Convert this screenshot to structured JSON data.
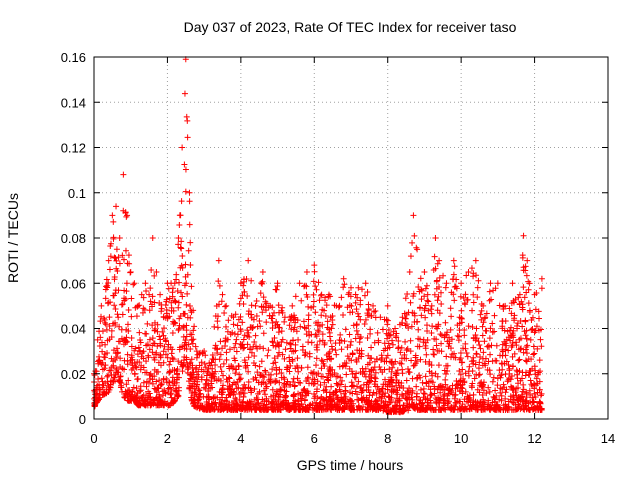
{
  "chart_data": {
    "type": "scatter",
    "title": "Day 037 of 2023, Rate Of TEC Index for receiver taso",
    "xlabel": "GPS time / hours",
    "ylabel": "ROTI / TECUs",
    "xlim": [
      0,
      14
    ],
    "ylim": [
      0,
      0.16
    ],
    "xticks": [
      0,
      2,
      4,
      6,
      8,
      10,
      12,
      14
    ],
    "xtick_labels": [
      "0",
      "2",
      "4",
      "6",
      "8",
      "10",
      "12",
      "14"
    ],
    "yticks": [
      0,
      0.02,
      0.04,
      0.06,
      0.08,
      0.1,
      0.12,
      0.14,
      0.16
    ],
    "ytick_labels": [
      "0",
      "0.02",
      "0.04",
      "0.06",
      "0.08",
      "0.1",
      "0.12",
      "0.14",
      "0.16"
    ],
    "grid": true,
    "marker": "plus",
    "color": "#ff0000",
    "envelope": {
      "note_free": true,
      "x": [
        0,
        0.1,
        0.2,
        0.4,
        0.5,
        0.6,
        0.7,
        0.8,
        0.9,
        1.0,
        1.1,
        1.2,
        1.3,
        1.4,
        1.5,
        1.6,
        1.7,
        1.8,
        1.9,
        2.0,
        2.1,
        2.2,
        2.3,
        2.4,
        2.5,
        2.6,
        2.7,
        2.8,
        3.0,
        3.2,
        3.4,
        3.5,
        3.6,
        3.8,
        4.0,
        4.2,
        4.4,
        4.6,
        4.8,
        5.0,
        5.2,
        5.4,
        5.6,
        5.8,
        6.0,
        6.2,
        6.4,
        6.6,
        6.8,
        7.0,
        7.2,
        7.4,
        7.6,
        7.8,
        8.0,
        8.2,
        8.4,
        8.6,
        8.7,
        8.8,
        9.0,
        9.2,
        9.3,
        9.4,
        9.6,
        9.8,
        10.0,
        10.2,
        10.4,
        10.6,
        10.8,
        11.0,
        11.2,
        11.4,
        11.6,
        11.7,
        11.8,
        12.0,
        12.2
      ],
      "ymax": [
        0.02,
        0.035,
        0.05,
        0.07,
        0.09,
        0.094,
        0.08,
        0.108,
        0.09,
        0.065,
        0.06,
        0.05,
        0.055,
        0.06,
        0.055,
        0.08,
        0.065,
        0.055,
        0.045,
        0.06,
        0.06,
        0.06,
        0.08,
        0.12,
        0.159,
        0.1,
        0.048,
        0.03,
        0.03,
        0.025,
        0.07,
        0.055,
        0.05,
        0.045,
        0.06,
        0.07,
        0.05,
        0.065,
        0.05,
        0.06,
        0.045,
        0.05,
        0.06,
        0.065,
        0.068,
        0.055,
        0.055,
        0.05,
        0.062,
        0.058,
        0.058,
        0.06,
        0.05,
        0.045,
        0.05,
        0.04,
        0.045,
        0.065,
        0.09,
        0.075,
        0.065,
        0.05,
        0.08,
        0.07,
        0.06,
        0.07,
        0.06,
        0.065,
        0.07,
        0.05,
        0.06,
        0.06,
        0.05,
        0.06,
        0.055,
        0.081,
        0.07,
        0.055,
        0.062
      ],
      "ymin": [
        0.005,
        0.008,
        0.01,
        0.012,
        0.015,
        0.02,
        0.015,
        0.01,
        0.008,
        0.008,
        0.008,
        0.006,
        0.006,
        0.006,
        0.006,
        0.006,
        0.006,
        0.006,
        0.006,
        0.006,
        0.006,
        0.008,
        0.01,
        0.02,
        0.03,
        0.012,
        0.006,
        0.005,
        0.004,
        0.004,
        0.004,
        0.004,
        0.004,
        0.004,
        0.004,
        0.004,
        0.004,
        0.004,
        0.004,
        0.004,
        0.004,
        0.004,
        0.004,
        0.004,
        0.004,
        0.004,
        0.004,
        0.004,
        0.004,
        0.004,
        0.004,
        0.004,
        0.004,
        0.004,
        0.003,
        0.003,
        0.003,
        0.004,
        0.005,
        0.004,
        0.004,
        0.004,
        0.004,
        0.004,
        0.004,
        0.004,
        0.004,
        0.004,
        0.004,
        0.004,
        0.004,
        0.004,
        0.004,
        0.004,
        0.004,
        0.004,
        0.004,
        0.004,
        0.004
      ]
    },
    "points_per_hour": 260
  }
}
